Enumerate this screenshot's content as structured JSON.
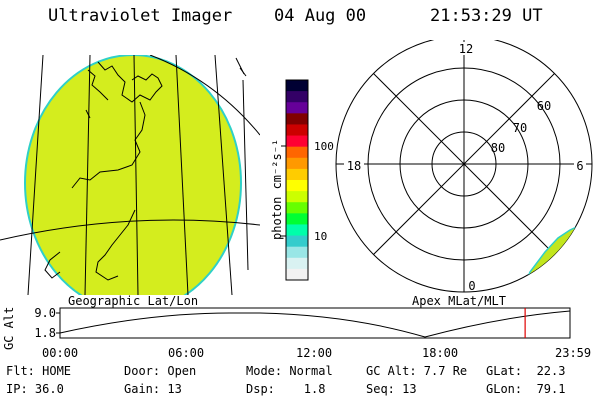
{
  "header": {
    "instrument": "Ultraviolet Imager",
    "date": "04 Aug 00",
    "time": "21:53:29 UT"
  },
  "colorbar": {
    "unit_label": "photon cm⁻²s⁻¹",
    "tick_labels": [
      "100",
      "10"
    ],
    "colors": [
      "#000033",
      "#330066",
      "#660099",
      "#800000",
      "#cc0000",
      "#ff0033",
      "#ff6600",
      "#ff9900",
      "#ffcc00",
      "#ffff00",
      "#ccff00",
      "#66ff00",
      "#00ff33",
      "#00ffaa",
      "#33cccc",
      "#99e6e6",
      "#d9f2f2",
      "#f2f2f2"
    ]
  },
  "geo_map": {
    "label": "Geographic Lat/Lon",
    "fill_color": "#d4ed1e",
    "edge_color": "#2fd0c8"
  },
  "polar_plot": {
    "label": "Apex MLat/MLT",
    "mlt_labels": {
      "top": "12",
      "left": "18",
      "right": "6",
      "bottom": "0"
    },
    "lat_labels": [
      "60",
      "70",
      "80"
    ]
  },
  "altitude_plot": {
    "ylabel": "GC Alt",
    "ymax_label": "9.0",
    "ymin_label": "1.8",
    "time_labels": [
      "00:00",
      "06:00",
      "12:00",
      "18:00",
      "23:59"
    ],
    "current_time_fraction": 0.912,
    "marker_color": "#e00000"
  },
  "status": {
    "flt": "Flt: HOME",
    "ip": "IP: 36.0",
    "door": "Door: Open",
    "gain": "Gain: 13",
    "mode": "Mode: Normal",
    "dsp": "Dsp:    1.8",
    "gcalt": "GC Alt: 7.7 Re",
    "seq": "Seq: 13",
    "glat": "GLat:  22.3",
    "glon": "GLon:  79.1"
  }
}
